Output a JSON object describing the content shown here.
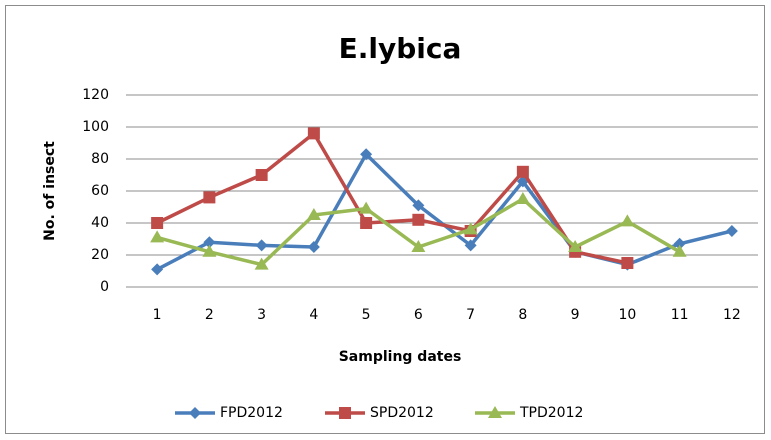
{
  "chart_data": {
    "type": "line",
    "title": "E.lybica",
    "x_label": "Sampling dates",
    "y_label": "No. of insect",
    "categories": [
      "1",
      "2",
      "3",
      "4",
      "5",
      "6",
      "7",
      "8",
      "9",
      "10",
      "11",
      "12"
    ],
    "series": [
      {
        "name": "FPD2012",
        "color": "#4a7ebb",
        "marker": "diamond",
        "values": [
          11,
          28,
          26,
          25,
          83,
          51,
          26,
          66,
          22,
          14,
          27,
          35
        ]
      },
      {
        "name": "SPD2012",
        "color": "#be4b48",
        "marker": "square",
        "values": [
          40,
          56,
          70,
          96,
          40,
          42,
          35,
          72,
          22,
          15,
          null,
          null
        ]
      },
      {
        "name": "TPD2012",
        "color": "#98b954",
        "marker": "triangle",
        "values": [
          31,
          22,
          14,
          45,
          49,
          25,
          36,
          55,
          25,
          41,
          22,
          null
        ]
      }
    ],
    "ylim": [
      0,
      120
    ],
    "yticks": [
      0,
      20,
      40,
      60,
      80,
      100,
      120
    ],
    "grid": true,
    "legend": "bottom"
  }
}
